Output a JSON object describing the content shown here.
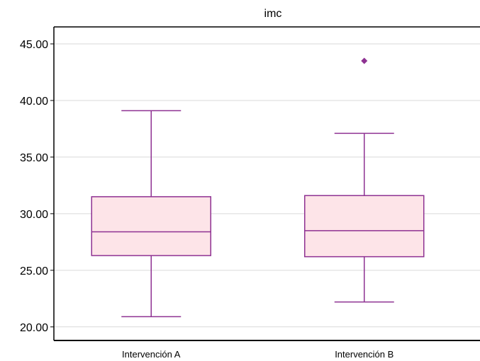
{
  "chart_data": {
    "type": "box",
    "title": "imc",
    "xlabel": "",
    "ylabel": "",
    "ylim": [
      18.8,
      46.5
    ],
    "yticks": [
      "20.00",
      "25.00",
      "30.00",
      "35.00",
      "40.00",
      "45.00"
    ],
    "categories": [
      "Intervención A",
      "Intervención B"
    ],
    "series": [
      {
        "category": "Intervención A",
        "whisker_low": 20.9,
        "q1": 26.3,
        "median": 28.4,
        "q3": 31.5,
        "whisker_high": 39.1,
        "outliers": []
      },
      {
        "category": "Intervención B",
        "whisker_low": 22.2,
        "q1": 26.2,
        "median": 28.5,
        "q3": 31.6,
        "whisker_high": 37.1,
        "outliers": [
          43.5
        ]
      }
    ],
    "grid": true,
    "colors": {
      "box_fill": "#fde4e8",
      "box_stroke": "#8e3192",
      "grid": "#d9d9d9",
      "axis": "#000000"
    }
  }
}
